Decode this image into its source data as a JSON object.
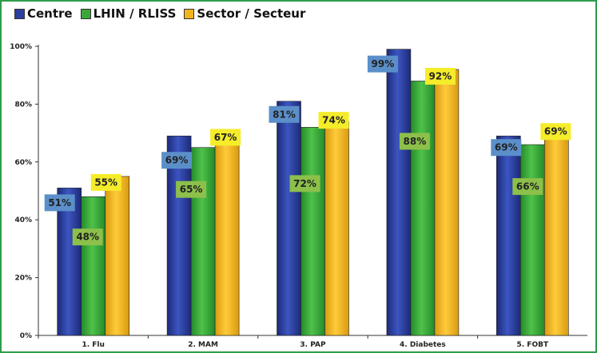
{
  "chart_data": {
    "type": "bar",
    "title": "",
    "xlabel": "",
    "ylabel": "",
    "categories": [
      "1. Flu",
      "2. MAM",
      "3. PAP",
      "4. Diabetes",
      "5. FOBT"
    ],
    "series": [
      {
        "name": "Centre",
        "color": "#2b3f9e",
        "values": [
          51,
          69,
          81,
          99,
          69
        ],
        "labels": [
          "51%",
          "69%",
          "81%",
          "99%",
          "69%"
        ],
        "label_color": "#5b8fc9"
      },
      {
        "name": "LHIN / RLISS",
        "color": "#3aa63a",
        "values": [
          48,
          65,
          72,
          88,
          66
        ],
        "labels": [
          "48%",
          "65%",
          "72%",
          "88%",
          "66%"
        ],
        "label_color": "#8cc04a"
      },
      {
        "name": "Sector / Secteur",
        "color": "#f2b51e",
        "values": [
          55,
          67,
          74,
          92,
          69
        ],
        "labels": [
          "55%",
          "67%",
          "74%",
          "92%",
          "69%"
        ],
        "label_color": "#f5ec2a"
      }
    ],
    "ylim": [
      0,
      100
    ],
    "yticks": [
      "0%",
      "20%",
      "40%",
      "60%",
      "80%",
      "100%"
    ],
    "grid": false,
    "legend_position": "top-left"
  }
}
